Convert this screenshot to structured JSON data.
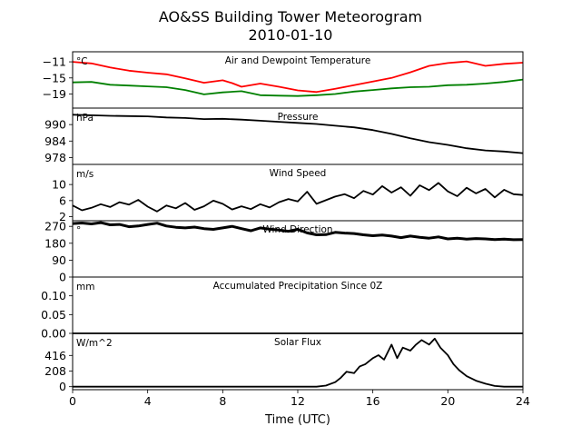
{
  "title": "AO&SS Building Tower Meteorogram",
  "subtitle": "2010-01-10",
  "chart_data": {
    "type": "line",
    "xlabel": "Time (UTC)",
    "xlim": [
      0,
      24
    ],
    "xticks": [
      "0",
      "4",
      "8",
      "12",
      "16",
      "20",
      "24"
    ],
    "panels": [
      {
        "name": "temperature",
        "unit": "°C",
        "label": "Air and Dewpoint Temperature",
        "ylim": [
          -22.5,
          -8.5
        ],
        "yticks": [
          -11,
          -15,
          -19
        ],
        "ytick_labels": [
          "−11",
          "−15",
          "−19"
        ],
        "series": [
          {
            "name": "air",
            "color": "#ff0000",
            "x": [
              0,
              1,
              2,
              3,
              4,
              5,
              6,
              7,
              8,
              8.5,
              9,
              10,
              11,
              12,
              13,
              14,
              15,
              16,
              17,
              18,
              19,
              20,
              21,
              22,
              23,
              24
            ],
            "y": [
              -11.0,
              -11.4,
              -12.4,
              -13.2,
              -13.7,
              -14.1,
              -15.1,
              -16.2,
              -15.6,
              -16.3,
              -17.2,
              -16.4,
              -17.2,
              -18.1,
              -18.5,
              -17.7,
              -16.8,
              -15.9,
              -15.0,
              -13.6,
              -12.0,
              -11.3,
              -10.9,
              -12.0,
              -11.5,
              -11.2
            ]
          },
          {
            "name": "dewpoint",
            "color": "#008000",
            "x": [
              0,
              1,
              2,
              3,
              4,
              5,
              6,
              7,
              8,
              9,
              10,
              11,
              12,
              13,
              14,
              15,
              16,
              17,
              18,
              19,
              20,
              21,
              22,
              23,
              24
            ],
            "y": [
              -16.1,
              -16.0,
              -16.7,
              -16.9,
              -17.1,
              -17.3,
              -18.0,
              -19.1,
              -18.6,
              -18.3,
              -19.3,
              -19.4,
              -19.5,
              -19.3,
              -19.0,
              -18.4,
              -18.0,
              -17.6,
              -17.3,
              -17.2,
              -16.8,
              -16.7,
              -16.4,
              -16.0,
              -15.4
            ]
          }
        ]
      },
      {
        "name": "pressure",
        "unit": "hPa",
        "label": "Pressure",
        "ylim": [
          975.5,
          996
        ],
        "yticks": [
          990,
          984,
          978
        ],
        "ytick_labels": [
          "990",
          "984",
          "978"
        ],
        "series": [
          {
            "name": "pressure",
            "color": "#000000",
            "x": [
              0,
              1,
              2,
              3,
              4,
              5,
              6,
              7,
              8,
              9,
              10,
              11,
              12,
              13,
              14,
              15,
              16,
              17,
              18,
              19,
              20,
              21,
              22,
              23,
              24
            ],
            "y": [
              993.6,
              993.4,
              993.2,
              993.1,
              993.0,
              992.6,
              992.4,
              992.0,
              992.1,
              991.8,
              991.4,
              991.0,
              990.6,
              990.2,
              989.6,
              989.0,
              988.0,
              986.6,
              985.0,
              983.6,
              982.6,
              981.4,
              980.6,
              980.2,
              979.6
            ]
          }
        ]
      },
      {
        "name": "wind_speed",
        "unit": "m/s",
        "label": "Wind Speed",
        "ylim": [
          1,
          15
        ],
        "yticks": [
          10,
          6,
          2
        ],
        "ytick_labels": [
          "10",
          "6",
          "2"
        ],
        "series": [
          {
            "name": "wind speed",
            "color": "#000000",
            "x": [
              0,
              0.5,
              1,
              1.5,
              2,
              2.5,
              3,
              3.5,
              4,
              4.5,
              5,
              5.5,
              6,
              6.5,
              7,
              7.5,
              8,
              8.5,
              9,
              9.5,
              10,
              10.5,
              11,
              11.5,
              12,
              12.5,
              13,
              13.5,
              14,
              14.5,
              15,
              15.5,
              16,
              16.5,
              17,
              17.5,
              18,
              18.5,
              19,
              19.5,
              20,
              20.5,
              21,
              21.5,
              22,
              22.5,
              23,
              23.5,
              24
            ],
            "y": [
              4.8,
              3.6,
              4.2,
              5.1,
              4.4,
              5.6,
              5.0,
              6.2,
              4.5,
              3.3,
              4.8,
              4.1,
              5.4,
              3.7,
              4.6,
              6.0,
              5.2,
              3.8,
              4.6,
              3.9,
              5.1,
              4.3,
              5.6,
              6.4,
              5.8,
              8.2,
              5.2,
              6.1,
              7.0,
              7.6,
              6.6,
              8.4,
              7.5,
              9.6,
              8.0,
              9.3,
              7.2,
              9.8,
              8.6,
              10.4,
              8.3,
              7.1,
              9.2,
              7.8,
              8.9,
              6.8,
              8.7,
              7.6,
              7.4
            ]
          }
        ]
      },
      {
        "name": "wind_direction",
        "unit": "°",
        "label": "Wind Direction",
        "ylim": [
          0,
          300
        ],
        "yticks": [
          270,
          180,
          90,
          0
        ],
        "ytick_labels": [
          "270",
          "180",
          "90",
          "0"
        ],
        "series": [
          {
            "name": "wind direction",
            "color": "#000000",
            "x": [
              0,
              0.5,
              1,
              1.5,
              2,
              2.5,
              3,
              3.5,
              4,
              4.5,
              5,
              5.5,
              6,
              6.5,
              7,
              7.5,
              8,
              8.5,
              9,
              9.5,
              10,
              10.5,
              11,
              11.5,
              12,
              12.5,
              13,
              13.5,
              14,
              14.5,
              15,
              15.5,
              16,
              16.5,
              17,
              17.5,
              18,
              18.5,
              19,
              19.5,
              20,
              20.5,
              21,
              21.5,
              22,
              22.5,
              23,
              23.5,
              24
            ],
            "y": [
              285,
              288,
              283,
              290,
              278,
              280,
              268,
              272,
              280,
              287,
              272,
              265,
              262,
              266,
              258,
              254,
              262,
              270,
              258,
              247,
              262,
              255,
              250,
              244,
              254,
              235,
              225,
              226,
              238,
              234,
              232,
              225,
              220,
              224,
              218,
              210,
              218,
              212,
              207,
              214,
              203,
              207,
              202,
              205,
              203,
              200,
              202,
              199,
              200
            ]
          }
        ]
      },
      {
        "name": "precipitation",
        "unit": "mm",
        "label": "Accumulated Precipitation Since 0Z",
        "ylim": [
          0,
          0.15
        ],
        "yticks": [
          0.1,
          0.05,
          0.0
        ],
        "ytick_labels": [
          "0.10",
          "0.05",
          "0.00"
        ],
        "series": [
          {
            "name": "precipitation",
            "color": "#000000",
            "x": [
              0,
              24
            ],
            "y": [
              0.0,
              0.0
            ]
          }
        ]
      },
      {
        "name": "solar_flux",
        "unit": "W/m^2",
        "label": "Solar Flux",
        "ylim": [
          -40,
          710
        ],
        "yticks": [
          416,
          208,
          0
        ],
        "ytick_labels": [
          "416",
          "208",
          "0"
        ],
        "series": [
          {
            "name": "solar flux",
            "color": "#000000",
            "x": [
              0,
              13,
              13.5,
              14,
              14.3,
              14.6,
              15,
              15.3,
              15.6,
              16,
              16.3,
              16.6,
              17,
              17.3,
              17.6,
              18,
              18.3,
              18.6,
              19,
              19.3,
              19.6,
              20,
              20.3,
              20.6,
              21,
              21.5,
              22,
              22.5,
              23,
              24
            ],
            "y": [
              0,
              0,
              15,
              60,
              120,
              200,
              180,
              270,
              300,
              380,
              420,
              360,
              560,
              380,
              520,
              480,
              560,
              620,
              560,
              640,
              520,
              420,
              300,
              220,
              140,
              80,
              40,
              10,
              0,
              0
            ]
          }
        ]
      }
    ]
  }
}
